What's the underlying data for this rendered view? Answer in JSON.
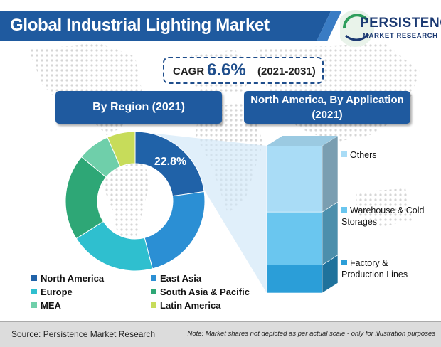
{
  "title": "Global Industrial Lighting Market",
  "logo": {
    "name": "PERSISTENCE",
    "subtitle": "MARKET RESEARCH"
  },
  "cagr": {
    "label": "CAGR",
    "value": "6.6%",
    "period": "(2021-2031)"
  },
  "colors": {
    "banner": "#1f5a9f",
    "north_america": "#2062a8",
    "east_asia": "#2b8fd4",
    "europe": "#2fbfcf",
    "south_asia_pacific": "#2ea776",
    "mea": "#6fcfaa",
    "latin_america": "#c7dc5a",
    "others": "#a9dcf6",
    "warehouse": "#6ac6ef",
    "factory": "#2b9ed8"
  },
  "chart_data": [
    {
      "type": "pie",
      "title": "By Region (2021)",
      "labels": [
        "North America",
        "East Asia",
        "Europe",
        "South Asia & Pacific",
        "MEA",
        "Latin America"
      ],
      "values": [
        22.8,
        23.2,
        20.0,
        20.0,
        7.5,
        6.5
      ],
      "data_labels": [
        "22.8%",
        "",
        "",
        "",
        "",
        ""
      ],
      "legend_position": "bottom",
      "colors": [
        "#2062a8",
        "#2b8fd4",
        "#2fbfcf",
        "#2ea776",
        "#6fcfaa",
        "#c7dc5a"
      ]
    },
    {
      "type": "bar",
      "title": "North America, By Application (2021)",
      "stacked": true,
      "categories": [
        "North America"
      ],
      "series": [
        {
          "name": "Factory & Production Lines",
          "values": [
            19
          ]
        },
        {
          "name": "Warehouse & Cold Storages",
          "values": [
            36
          ]
        },
        {
          "name": "Others",
          "values": [
            45
          ]
        }
      ],
      "colors": [
        "#2b9ed8",
        "#6ac6ef",
        "#a9dcf6"
      ]
    }
  ],
  "legend": {
    "north_america": "North America",
    "east_asia": "East Asia",
    "europe": "Europe",
    "south_asia_pacific": "South Asia & Pacific",
    "mea": "MEA",
    "latin_america": "Latin America"
  },
  "stack_labels": {
    "others": "Others",
    "warehouse": "Warehouse & Cold Storages",
    "factory": "Factory & Production Lines"
  },
  "footer": {
    "source": "Source: Persistence Market Research",
    "note": "Note: Market shares not depicted as per actual scale - only for illustration purposes"
  }
}
